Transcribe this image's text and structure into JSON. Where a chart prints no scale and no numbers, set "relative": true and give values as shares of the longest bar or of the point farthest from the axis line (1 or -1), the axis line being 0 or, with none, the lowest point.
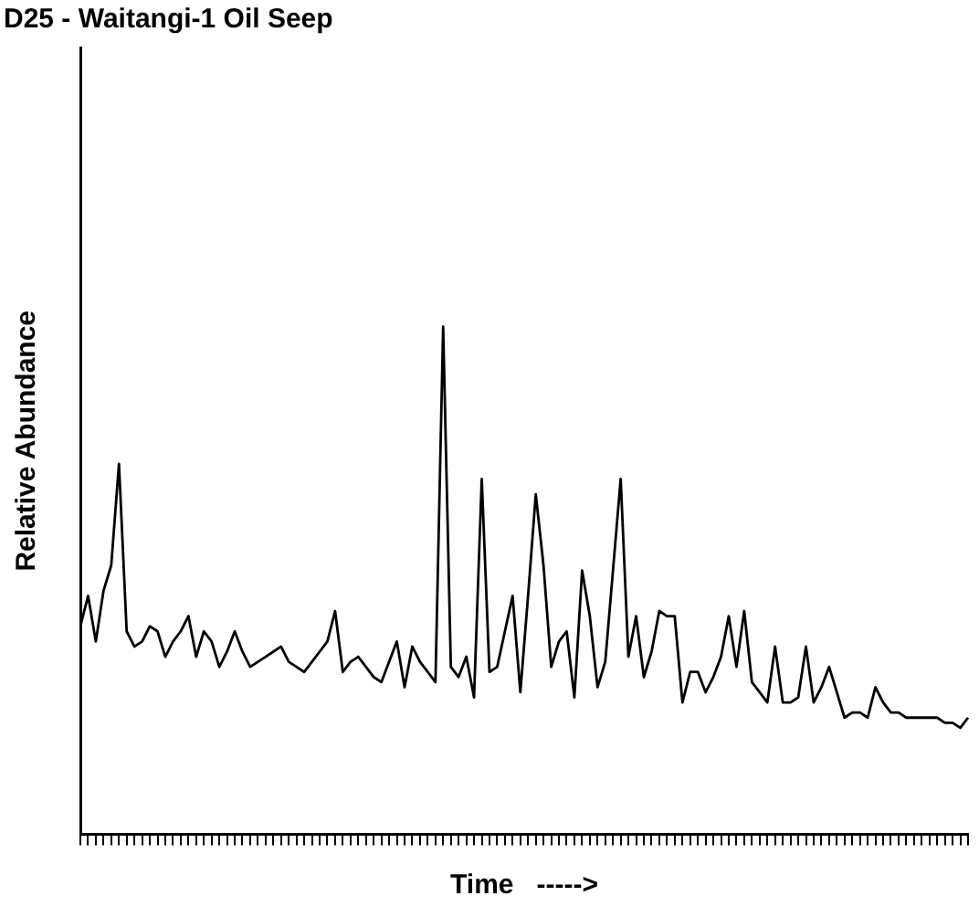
{
  "chart_data": {
    "type": "line",
    "title": "D25 - Waitangi-1 Oil Seep",
    "xlabel": "Time   ----->",
    "ylabel": "Relative Abundance",
    "relative": true,
    "grid": false,
    "legend": false,
    "marker": "none",
    "line_style": "solid",
    "categories": [
      null,
      null,
      null,
      null,
      null,
      null,
      null,
      null,
      null,
      null,
      null,
      null,
      null,
      null,
      null,
      null,
      null,
      null,
      null,
      null,
      null,
      null,
      null,
      null,
      null,
      null,
      null,
      null,
      null,
      null,
      null,
      null,
      null,
      null,
      null,
      null,
      null,
      null,
      null,
      null,
      null,
      null,
      null,
      null,
      null,
      null,
      null,
      null,
      null,
      null,
      null,
      null,
      null,
      null,
      null,
      null,
      null,
      null,
      null,
      null,
      null,
      null,
      null,
      null,
      null,
      null,
      null,
      null,
      null,
      null,
      null,
      null,
      null,
      null,
      null,
      null,
      null,
      null,
      null,
      null,
      null,
      null,
      null,
      null,
      null,
      null,
      null,
      null,
      null,
      null,
      null,
      null,
      null,
      null,
      null,
      null,
      null,
      null,
      null,
      null,
      null,
      null,
      null,
      null,
      null,
      null,
      null,
      null,
      null,
      null,
      null,
      null,
      null,
      null,
      null,
      null
    ],
    "series": [
      {
        "color": "#000000",
        "values": [
          0.41,
          0.47,
          0.38,
          0.48,
          0.53,
          0.73,
          0.4,
          0.37,
          0.38,
          0.41,
          0.4,
          0.35,
          0.38,
          0.4,
          0.43,
          0.35,
          0.4,
          0.38,
          0.33,
          0.36,
          0.4,
          0.36,
          0.33,
          0.34,
          0.35,
          0.36,
          0.37,
          0.34,
          0.33,
          0.32,
          0.34,
          0.36,
          0.38,
          0.44,
          0.32,
          0.34,
          0.35,
          0.33,
          0.31,
          0.3,
          0.34,
          0.38,
          0.29,
          0.37,
          0.34,
          0.32,
          0.3,
          1,
          0.33,
          0.31,
          0.35,
          0.27,
          0.7,
          0.32,
          0.33,
          0.4,
          0.47,
          0.28,
          0.47,
          0.67,
          0.53,
          0.33,
          0.38,
          0.4,
          0.27,
          0.52,
          0.43,
          0.29,
          0.34,
          0.52,
          0.7,
          0.35,
          0.43,
          0.31,
          0.36,
          0.44,
          0.43,
          0.43,
          0.26,
          0.32,
          0.32,
          0.28,
          0.31,
          0.35,
          0.43,
          0.33,
          0.44,
          0.3,
          0.28,
          0.26,
          0.37,
          0.26,
          0.26,
          0.27,
          0.37,
          0.26,
          0.29,
          0.33,
          0.28,
          0.23,
          0.24,
          0.24,
          0.23,
          0.29,
          0.26,
          0.24,
          0.24,
          0.23,
          0.23,
          0.23,
          0.23,
          0.23,
          0.22,
          0.22,
          0.21,
          0.23
        ]
      }
    ]
  }
}
